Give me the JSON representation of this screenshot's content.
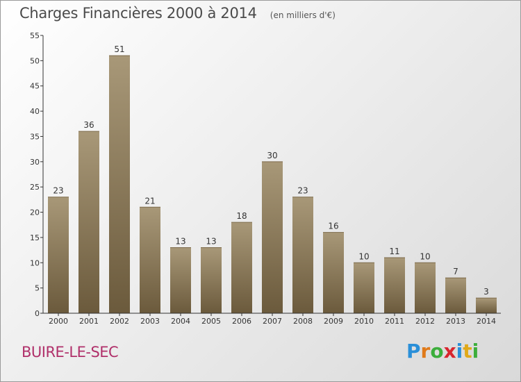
{
  "header": {
    "title": "Charges Financières 2000 à 2014",
    "subtitle": "(en milliers d'€)"
  },
  "footer": {
    "place_name": "BUIRE-LE-SEC",
    "brand": [
      "P",
      "r",
      "o",
      "x",
      "i",
      "t",
      "i"
    ],
    "brand_colors": [
      "#2a8fd8",
      "#e07a1a",
      "#3cae3c",
      "#d8262e",
      "#2a8fd8",
      "#e0a91a",
      "#3cae3c"
    ]
  },
  "colors": {
    "bar_top": "#a89878",
    "bar_bottom": "#6b5a3c",
    "axis": "#333333",
    "place_name": "#b0306a"
  },
  "chart_data": {
    "type": "bar",
    "categories": [
      "2000",
      "2001",
      "2002",
      "2003",
      "2004",
      "2005",
      "2006",
      "2007",
      "2008",
      "2009",
      "2010",
      "2011",
      "2012",
      "2013",
      "2014"
    ],
    "values": [
      23,
      36,
      51,
      21,
      13,
      13,
      18,
      30,
      23,
      16,
      10,
      11,
      10,
      7,
      3
    ],
    "title": "Charges Financières 2000 à 2014",
    "subtitle": "(en milliers d'€)",
    "xlabel": "",
    "ylabel": "",
    "ylim": [
      0,
      55
    ],
    "yticks": [
      0,
      5,
      10,
      15,
      20,
      25,
      30,
      35,
      40,
      45,
      50,
      55
    ],
    "grid": false,
    "data_labels": true
  }
}
